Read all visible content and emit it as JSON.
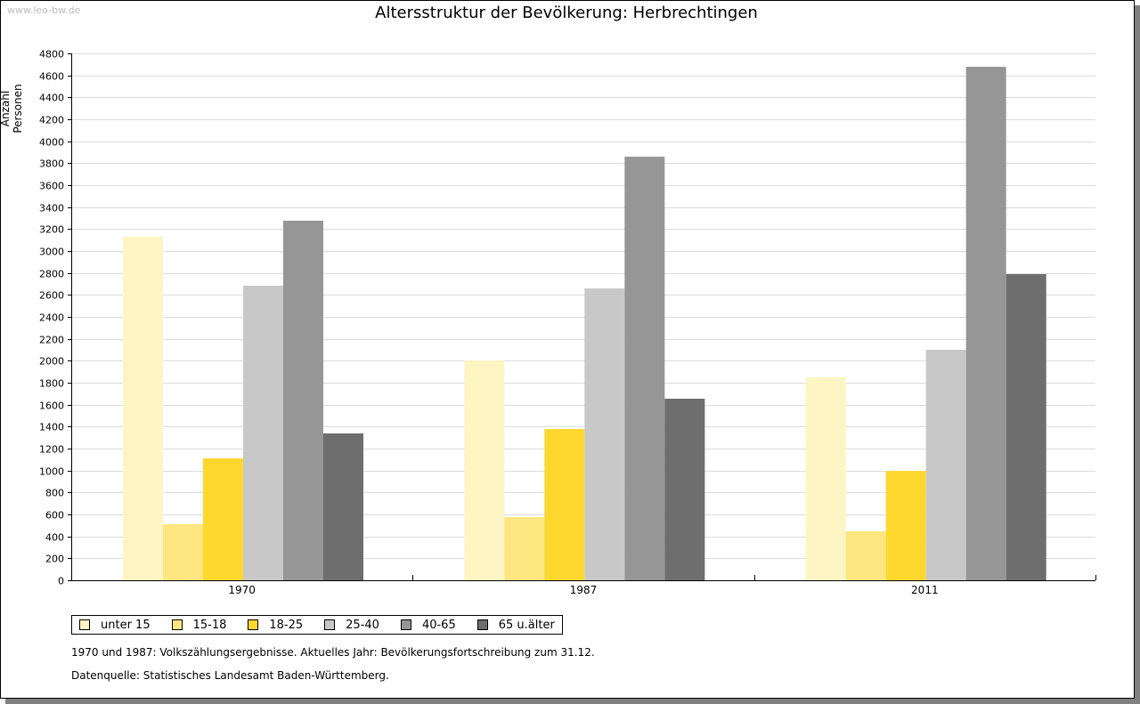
{
  "watermark": "www.leo-bw.de",
  "chart_data": {
    "type": "bar",
    "title": "Altersstruktur der Bevölkerung: Herbrechtingen",
    "xlabel": "",
    "ylabel": "Anzahl Personen",
    "ylim": [
      0,
      4800
    ],
    "ytick_step": 200,
    "grid": true,
    "legend_position": "bottom",
    "categories": [
      "1970",
      "1987",
      "2011"
    ],
    "series": [
      {
        "name": "unter 15",
        "color": "#FDF5C4",
        "values": [
          3130,
          2003,
          1849
        ]
      },
      {
        "name": "15-18",
        "color": "#FDE680",
        "values": [
          511,
          576,
          446
        ]
      },
      {
        "name": "18-25",
        "color": "#FDD72E",
        "values": [
          1111,
          1378,
          997
        ]
      },
      {
        "name": "25-40",
        "color": "#C8C8C8",
        "values": [
          2684,
          2659,
          2100
        ]
      },
      {
        "name": "40-65",
        "color": "#969696",
        "values": [
          3276,
          3859,
          4678
        ]
      },
      {
        "name": "65 u.älter",
        "color": "#6E6E6E",
        "values": [
          1338,
          1654,
          2789
        ]
      }
    ]
  },
  "notes": [
    "1970 und 1987: Volkszählungsergebnisse. Aktuelles Jahr: Bevölkerungsfortschreibung zum 31.12.",
    "Datenquelle: Statistisches Landesamt Baden-Württemberg."
  ]
}
